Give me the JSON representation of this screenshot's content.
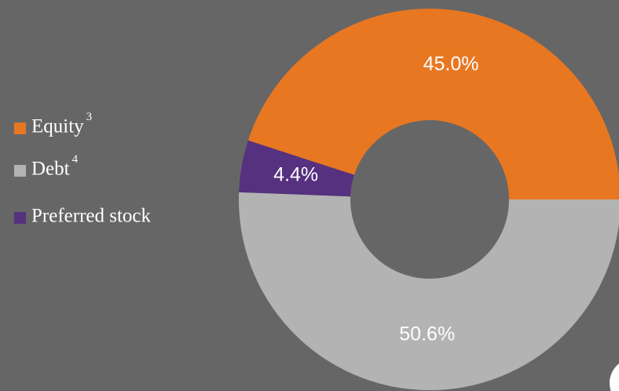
{
  "chart_data": {
    "type": "donut",
    "categories": [
      "Equity",
      "Debt",
      "Preferred stock"
    ],
    "footnotes": [
      "3",
      "4",
      null
    ],
    "values": [
      45.0,
      50.6,
      4.4
    ],
    "value_labels": [
      "45.0%",
      "50.6%",
      "4.4%"
    ],
    "colors": [
      "#e87722",
      "#b3b3b3",
      "#55317f"
    ]
  }
}
